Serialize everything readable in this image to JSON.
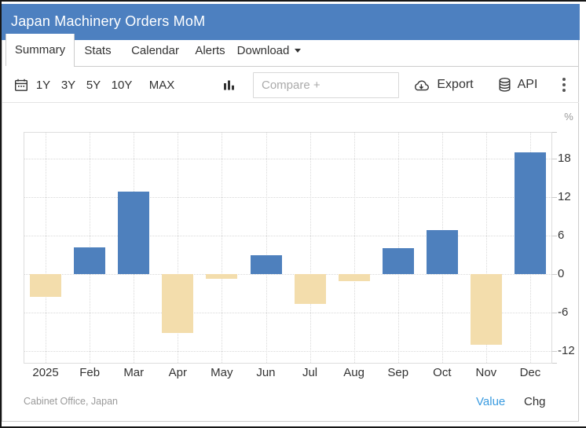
{
  "header": {
    "title": "Japan Machinery Orders MoM"
  },
  "tabs": [
    {
      "label": "Summary",
      "active": true
    },
    {
      "label": "Stats",
      "active": false
    },
    {
      "label": "Calendar",
      "active": false
    },
    {
      "label": "Alerts",
      "active": false
    },
    {
      "label": "Download",
      "active": false,
      "has_dropdown": true
    }
  ],
  "toolbar": {
    "calendar_icon": "calendar-icon",
    "ranges": [
      "1Y",
      "3Y",
      "5Y",
      "10Y",
      "MAX"
    ],
    "chart_type_icon": "column-chart-icon",
    "compare_placeholder": "Compare +",
    "export_label": "Export",
    "export_icon": "cloud-download-icon",
    "api_label": "API",
    "api_icon": "database-icon",
    "menu_icon": "kebab-menu-icon"
  },
  "chart_data": {
    "type": "bar",
    "title": "Japan Machinery Orders MoM",
    "unit": "%",
    "categories": [
      "2025",
      "Feb",
      "Mar",
      "Apr",
      "May",
      "Jun",
      "Jul",
      "Aug",
      "Sep",
      "Oct",
      "Nov",
      "Dec"
    ],
    "values": [
      -3.6,
      4.2,
      12.9,
      -9.2,
      -0.7,
      2.9,
      -4.7,
      -1.1,
      4.1,
      6.9,
      -11.1,
      19.0
    ],
    "yticks": [
      18,
      12,
      6,
      0,
      -6,
      -12
    ],
    "ylim": [
      -14,
      22.2
    ],
    "grid": "dotted",
    "legend_position": "none",
    "positive_color": "#4e80bd",
    "negative_color": "#f3ddac"
  },
  "footer": {
    "source": "Cabinet Office, Japan",
    "value_label": "Value",
    "chg_label": "Chg"
  },
  "colors": {
    "header_bg": "#4d80c0",
    "link_blue": "#3a9be0",
    "text_dark": "#333333",
    "text_muted": "#999999"
  }
}
